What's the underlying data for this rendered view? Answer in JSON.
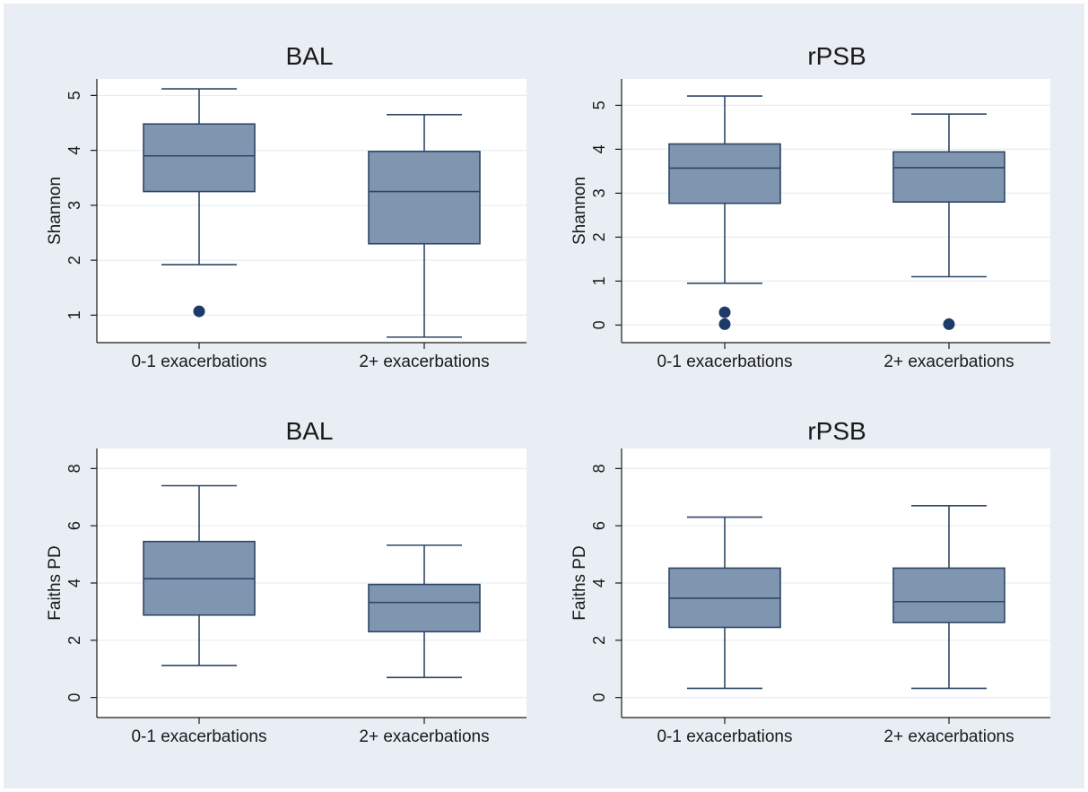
{
  "chart_data": [
    {
      "type": "box",
      "title": "BAL",
      "xlabel": "",
      "ylabel": "Shannon",
      "ylim": [
        0.5,
        5.3
      ],
      "yticks": [
        1,
        2,
        3,
        4,
        5
      ],
      "categories": [
        "0-1 exacerbations",
        "2+ exacerbations"
      ],
      "boxes": [
        {
          "min": 1.92,
          "q1": 3.25,
          "median": 3.9,
          "q3": 4.48,
          "max": 5.12,
          "outliers": [
            1.07
          ]
        },
        {
          "min": 0.6,
          "q1": 2.3,
          "median": 3.25,
          "q3": 3.98,
          "max": 4.65,
          "outliers": []
        }
      ],
      "grid": true,
      "colors": {
        "box": "#8095b0",
        "line": "#2e4766",
        "outlier": "#1c3b66"
      }
    },
    {
      "type": "box",
      "title": "rPSB",
      "xlabel": "",
      "ylabel": "Shannon",
      "ylim": [
        -0.4,
        5.6
      ],
      "yticks": [
        0,
        1,
        2,
        3,
        4,
        5
      ],
      "categories": [
        "0-1 exacerbations",
        "2+ exacerbations"
      ],
      "boxes": [
        {
          "min": 0.95,
          "q1": 2.77,
          "median": 3.57,
          "q3": 4.12,
          "max": 5.21,
          "outliers": [
            0.29,
            0.02
          ]
        },
        {
          "min": 1.1,
          "q1": 2.8,
          "median": 3.58,
          "q3": 3.94,
          "max": 4.8,
          "outliers": [
            0.02
          ]
        }
      ],
      "grid": true,
      "colors": {
        "box": "#8095b0",
        "line": "#2e4766",
        "outlier": "#1c3b66"
      }
    },
    {
      "type": "box",
      "title": "BAL",
      "xlabel": "",
      "ylabel": "Faiths PD",
      "ylim": [
        -0.7,
        8.7
      ],
      "yticks": [
        0,
        2,
        4,
        6,
        8
      ],
      "categories": [
        "0-1 exacerbations",
        "2+ exacerbations"
      ],
      "boxes": [
        {
          "min": 1.12,
          "q1": 2.88,
          "median": 4.15,
          "q3": 5.45,
          "max": 7.4,
          "outliers": []
        },
        {
          "min": 0.7,
          "q1": 2.3,
          "median": 3.32,
          "q3": 3.95,
          "max": 5.32,
          "outliers": []
        }
      ],
      "grid": true,
      "colors": {
        "box": "#8095b0",
        "line": "#2e4766",
        "outlier": "#1c3b66"
      }
    },
    {
      "type": "box",
      "title": "rPSB",
      "xlabel": "",
      "ylabel": "Faiths PD",
      "ylim": [
        -0.7,
        8.7
      ],
      "yticks": [
        0,
        2,
        4,
        6,
        8
      ],
      "categories": [
        "0-1 exacerbations",
        "2+ exacerbations"
      ],
      "boxes": [
        {
          "min": 0.32,
          "q1": 2.45,
          "median": 3.47,
          "q3": 4.52,
          "max": 6.3,
          "outliers": []
        },
        {
          "min": 0.32,
          "q1": 2.62,
          "median": 3.35,
          "q3": 4.52,
          "max": 6.7,
          "outliers": []
        }
      ],
      "grid": true,
      "colors": {
        "box": "#8095b0",
        "line": "#2e4766",
        "outlier": "#1c3b66"
      }
    }
  ],
  "colors": {
    "figure_background": "#e8eef4",
    "plot_background": "#ffffff",
    "grid": "#e9eef3",
    "axis": "#1a1a1a"
  }
}
